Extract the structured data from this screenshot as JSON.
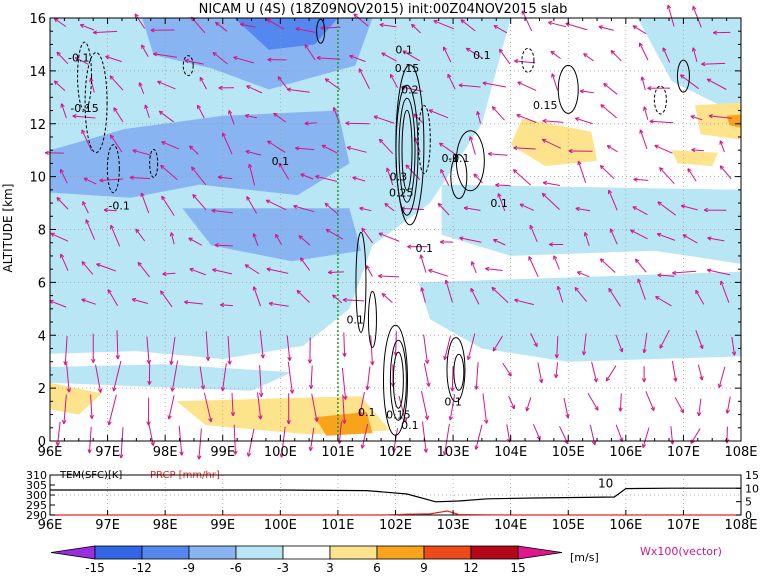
{
  "chart_data": [
    {
      "type": "heatmap",
      "title": "NICAM U (4S) (18Z09NOV2015) init:00Z04NOV2015 slab",
      "ylabel": "ALTITUDE [km]",
      "xlim": [
        96,
        108
      ],
      "ylim": [
        0,
        16
      ],
      "x_ticks": [
        "96E",
        "97E",
        "98E",
        "99E",
        "100E",
        "101E",
        "102E",
        "103E",
        "104E",
        "105E",
        "106E",
        "107E",
        "108E"
      ],
      "y_ticks": [
        "0",
        "2",
        "4",
        "6",
        "8",
        "10",
        "12",
        "14",
        "16"
      ],
      "grid": true,
      "marker_line_x": 101.0,
      "contour_labels": [
        {
          "text": "-0.1",
          "x": 96.5,
          "y": 14.5
        },
        {
          "text": "-0.15",
          "x": 96.6,
          "y": 12.6
        },
        {
          "text": "-0.1",
          "x": 97.2,
          "y": 8.9
        },
        {
          "text": "0.1",
          "x": 100.0,
          "y": 10.6
        },
        {
          "text": "0.1",
          "x": 102.15,
          "y": 14.8
        },
        {
          "text": "0.15",
          "x": 102.2,
          "y": 14.1
        },
        {
          "text": "0.2",
          "x": 102.25,
          "y": 13.3
        },
        {
          "text": "0.3",
          "x": 102.05,
          "y": 10.0
        },
        {
          "text": "0.25",
          "x": 102.1,
          "y": 9.4
        },
        {
          "text": "-0.1",
          "x": 103.1,
          "y": 10.7
        },
        {
          "text": "0.1",
          "x": 102.95,
          "y": 10.7
        },
        {
          "text": "0.1",
          "x": 103.8,
          "y": 9.0
        },
        {
          "text": "0.1",
          "x": 103.5,
          "y": 14.6
        },
        {
          "text": "0.15",
          "x": 104.6,
          "y": 12.7
        },
        {
          "text": "0.1",
          "x": 102.5,
          "y": 7.3
        },
        {
          "text": "0.1",
          "x": 101.3,
          "y": 4.6
        },
        {
          "text": "0.1",
          "x": 101.5,
          "y": 1.1
        },
        {
          "text": "0.15",
          "x": 102.05,
          "y": 1.0
        },
        {
          "text": "0.1",
          "x": 102.25,
          "y": 0.6
        },
        {
          "text": "0.1",
          "x": 103.0,
          "y": 1.5
        }
      ]
    },
    {
      "type": "line",
      "xlim": [
        96,
        108
      ],
      "y_left_label": "TEM(SFC)[K]",
      "y_right_label": "PRCP [mm/hr]",
      "y_left_ticks": [
        "310",
        "305",
        "300",
        "295",
        "290"
      ],
      "y_right_ticks": [
        "15",
        "10",
        "5",
        "0"
      ],
      "x_ticks": [
        "96E",
        "97E",
        "98E",
        "99E",
        "100E",
        "101E",
        "102E",
        "103E",
        "104E",
        "105E",
        "106E",
        "107E",
        "108E"
      ],
      "annotation": "10",
      "series": [
        {
          "name": "TEM(SFC)[K]",
          "x": [
            96,
            100,
            101.5,
            102.2,
            102.7,
            103.1,
            103.6,
            104.4,
            105.3,
            105.8,
            106.0,
            106.8,
            108
          ],
          "values": [
            302.5,
            302.5,
            302.2,
            300.5,
            296.6,
            297.0,
            298.1,
            298.5,
            298.8,
            299.0,
            303.2,
            303.4,
            303.4
          ]
        },
        {
          "name": "PRCP [mm/hr]",
          "x": [
            96,
            101.8,
            102.2,
            102.6,
            102.9,
            103.1,
            103.4,
            104.0,
            108
          ],
          "values": [
            0,
            0,
            0.3,
            0.4,
            1.5,
            0.2,
            0.1,
            0,
            0
          ]
        }
      ]
    }
  ],
  "colorbar": {
    "ticks": [
      "-15",
      "-12",
      "-9",
      "-6",
      "-3",
      "3",
      "6",
      "9",
      "12",
      "15"
    ],
    "unit": "[m/s]",
    "colors": [
      "#9a2de0",
      "#3366e6",
      "#5588ee",
      "#88b5f2",
      "#b8e6f5",
      "#ffffff",
      "#fde48c",
      "#f7a41c",
      "#ec4a18",
      "#b30818",
      "#e0188c"
    ]
  },
  "vector_legend": "Wx100(vector)"
}
